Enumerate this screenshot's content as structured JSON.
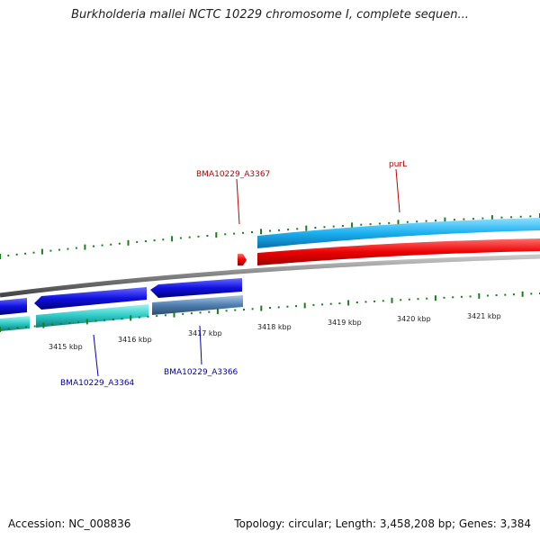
{
  "title": "Burkholderia mallei NCTC 10229 chromosome I, complete sequen...",
  "footer": {
    "accession": "Accession: NC_008836",
    "summary": "Topology: circular; Length: 3,458,208 bp; Genes: 3,384"
  },
  "scale_labels": [
    "3415 kbp",
    "3416 kbp",
    "3417 kbp",
    "3418 kbp",
    "3419 kbp",
    "3420 kbp",
    "3421 kbp"
  ],
  "gene_labels": {
    "a3367": "BMA10229_A3367",
    "purl": "purL",
    "a3364": "BMA10229_A3364",
    "a3366": "BMA10229_A3366"
  },
  "colors": {
    "forward_cds": "#1e9fe0",
    "forward_gene": "#e00000",
    "reverse_cds": "#1a1ae0",
    "reverse_gene": "#2ec9c9",
    "reverse_gene_alt": "#4f7fb0",
    "backbone": "#808080",
    "ticks": "#1a7f1a",
    "label_forward": "#c00000",
    "label_reverse": "#0000b0"
  }
}
